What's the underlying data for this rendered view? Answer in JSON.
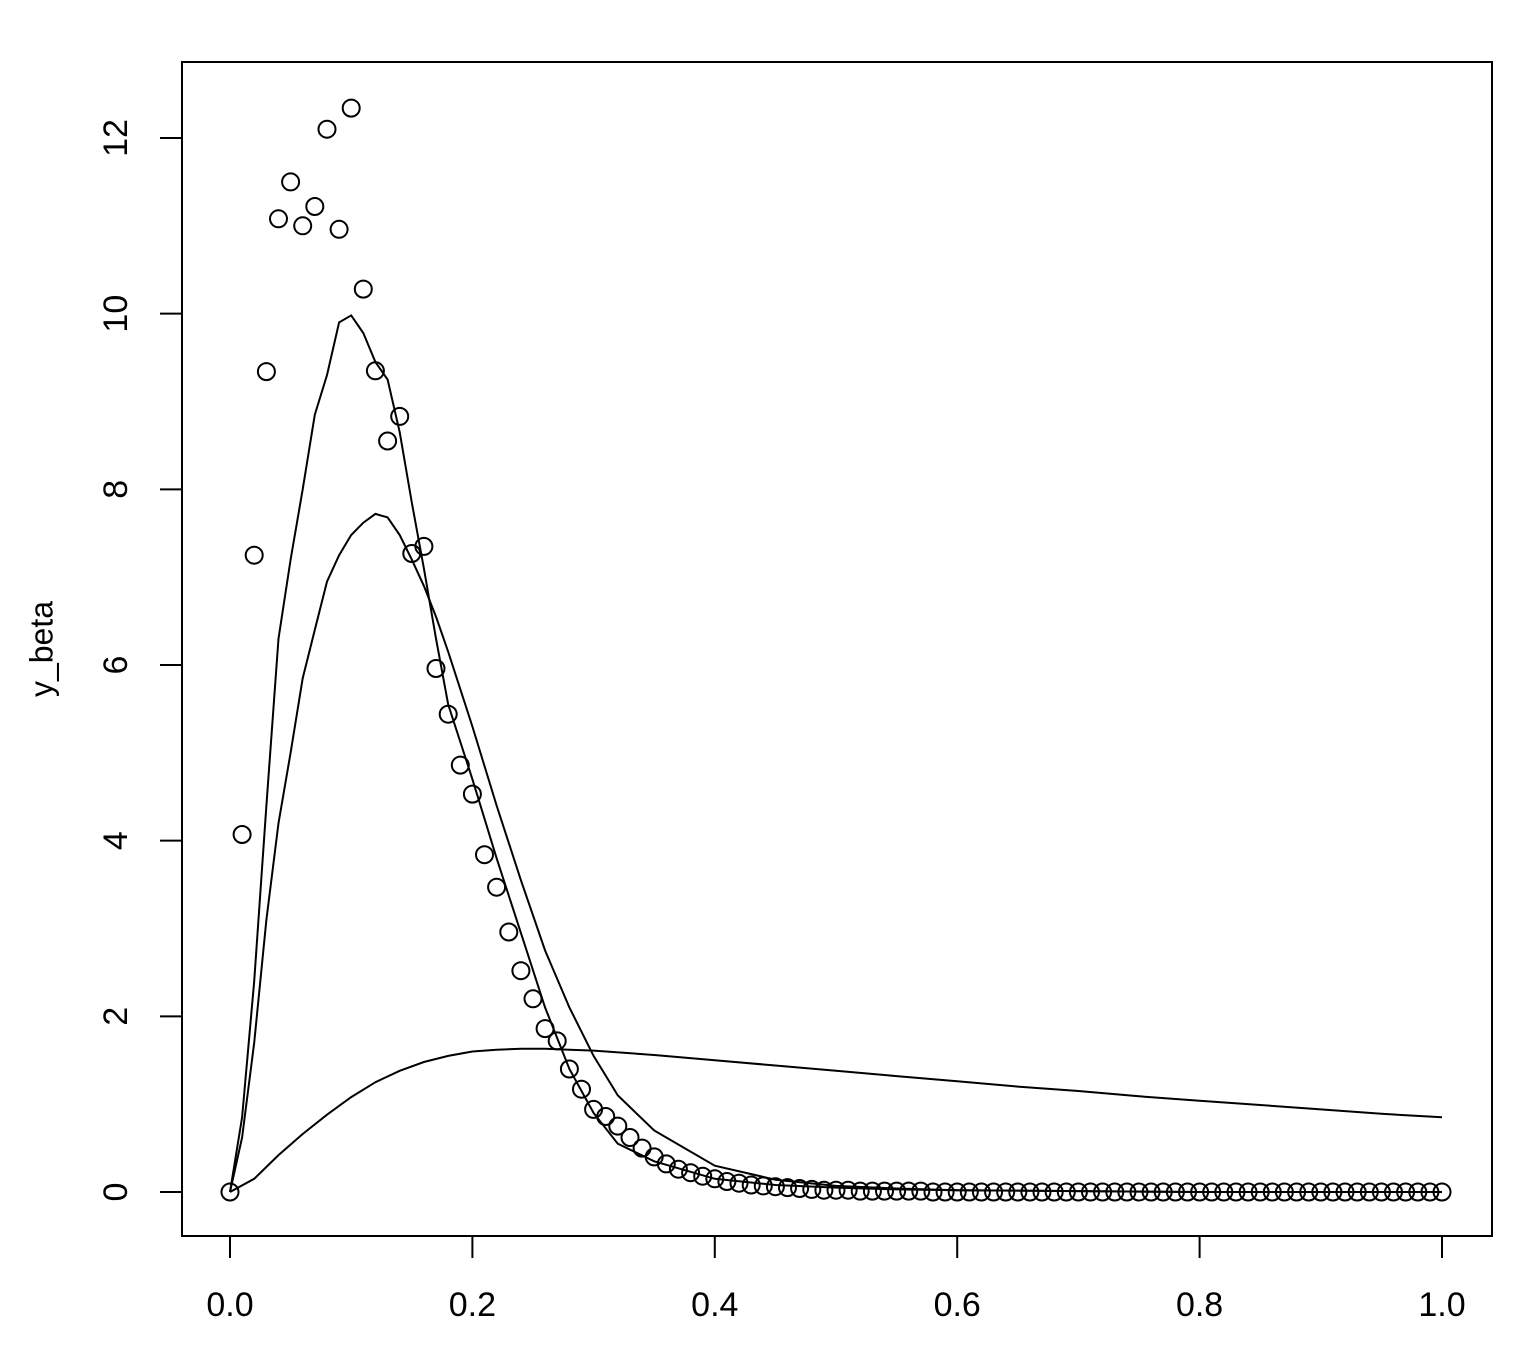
{
  "chart_data": {
    "type": "scatter",
    "title": "",
    "xlabel": "",
    "ylabel": "y_beta",
    "xlim": [
      -0.04,
      1.04
    ],
    "ylim": [
      -0.5,
      14
    ],
    "xticks": [
      "0.0",
      "0.2",
      "0.4",
      "0.6",
      "0.8",
      "1.0"
    ],
    "yticks": [
      "0",
      "2",
      "4",
      "6",
      "8",
      "10",
      "12"
    ],
    "grid": false,
    "legend": "none",
    "points": {
      "x": [
        0.0,
        0.01,
        0.02,
        0.03,
        0.04,
        0.05,
        0.06,
        0.07,
        0.08,
        0.09,
        0.1,
        0.11,
        0.12,
        0.13,
        0.14,
        0.15,
        0.16,
        0.17,
        0.18,
        0.19,
        0.2,
        0.21,
        0.22,
        0.23,
        0.24,
        0.25,
        0.26,
        0.27,
        0.28,
        0.29,
        0.3,
        0.31,
        0.32,
        0.33,
        0.34,
        0.35,
        0.36,
        0.37,
        0.38,
        0.39,
        0.4,
        0.41,
        0.42,
        0.43,
        0.44,
        0.45,
        0.46,
        0.47,
        0.48,
        0.49,
        0.5,
        0.51,
        0.52,
        0.53,
        0.54,
        0.55,
        0.56,
        0.57,
        0.58,
        0.59,
        0.6,
        0.61,
        0.62,
        0.63,
        0.64,
        0.65,
        0.66,
        0.67,
        0.68,
        0.69,
        0.7,
        0.71,
        0.72,
        0.73,
        0.74,
        0.75,
        0.76,
        0.77,
        0.78,
        0.79,
        0.8,
        0.81,
        0.82,
        0.83,
        0.84,
        0.85,
        0.86,
        0.87,
        0.88,
        0.89,
        0.9,
        0.91,
        0.92,
        0.93,
        0.94,
        0.95,
        0.96,
        0.97,
        0.98,
        0.99,
        1.0
      ],
      "y": [
        0.0,
        4.07,
        7.25,
        9.34,
        11.08,
        11.5,
        11.0,
        11.22,
        12.1,
        10.96,
        12.34,
        10.28,
        9.35,
        8.55,
        8.83,
        7.27,
        7.35,
        5.96,
        5.44,
        4.86,
        4.53,
        3.84,
        3.47,
        2.96,
        2.52,
        2.2,
        1.86,
        1.72,
        1.4,
        1.17,
        0.94,
        0.86,
        0.75,
        0.62,
        0.5,
        0.4,
        0.32,
        0.26,
        0.22,
        0.18,
        0.15,
        0.12,
        0.1,
        0.08,
        0.07,
        0.06,
        0.05,
        0.04,
        0.03,
        0.02,
        0.02,
        0.02,
        0.01,
        0.01,
        0.01,
        0.01,
        0.01,
        0.01,
        0.0,
        0.0,
        0.0,
        0.0,
        0.0,
        0.0,
        0.0,
        0.0,
        0.0,
        0.0,
        0.0,
        0.0,
        0.0,
        0.0,
        0.0,
        0.0,
        0.0,
        0.0,
        0.0,
        0.0,
        0.0,
        0.0,
        0.0,
        0.0,
        0.0,
        0.0,
        0.0,
        0.0,
        0.0,
        0.0,
        0.0,
        0.0,
        0.0,
        0.0,
        0.0,
        0.0,
        0.0,
        0.0,
        0.0,
        0.0,
        0.0,
        0.0,
        0.0
      ]
    },
    "series": [
      {
        "x": [
          0.0,
          0.01,
          0.02,
          0.03,
          0.04,
          0.05,
          0.06,
          0.07,
          0.08,
          0.09,
          0.1,
          0.11,
          0.12,
          0.13,
          0.14,
          0.15,
          0.16,
          0.17,
          0.18,
          0.2,
          0.22,
          0.24,
          0.26,
          0.28,
          0.3,
          0.32,
          0.35,
          0.4,
          0.45,
          0.5,
          0.55,
          0.6,
          0.7,
          0.8,
          0.9,
          1.0
        ],
        "y": [
          0.0,
          0.85,
          2.4,
          4.4,
          6.3,
          7.2,
          8.0,
          8.85,
          9.3,
          9.9,
          9.98,
          9.78,
          9.45,
          9.25,
          8.65,
          7.85,
          7.1,
          6.3,
          5.55,
          4.7,
          3.8,
          2.95,
          2.1,
          1.4,
          0.9,
          0.55,
          0.35,
          0.15,
          0.08,
          0.05,
          0.03,
          0.02,
          0.01,
          0.0,
          0.0,
          0.0
        ]
      },
      {
        "x": [
          0.0,
          0.01,
          0.02,
          0.03,
          0.04,
          0.05,
          0.06,
          0.07,
          0.08,
          0.09,
          0.1,
          0.11,
          0.12,
          0.13,
          0.14,
          0.15,
          0.16,
          0.17,
          0.18,
          0.2,
          0.22,
          0.24,
          0.26,
          0.28,
          0.3,
          0.32,
          0.35,
          0.4,
          0.45,
          0.5,
          0.55,
          0.6,
          0.7,
          0.8,
          0.9,
          1.0
        ],
        "y": [
          0.0,
          0.62,
          1.7,
          3.1,
          4.2,
          5.0,
          5.85,
          6.4,
          6.95,
          7.25,
          7.48,
          7.62,
          7.72,
          7.68,
          7.48,
          7.2,
          6.9,
          6.55,
          6.15,
          5.3,
          4.4,
          3.55,
          2.75,
          2.1,
          1.55,
          1.1,
          0.7,
          0.3,
          0.14,
          0.07,
          0.04,
          0.02,
          0.01,
          0.0,
          0.0,
          0.0
        ]
      },
      {
        "x": [
          0.0,
          0.02,
          0.04,
          0.06,
          0.08,
          0.1,
          0.12,
          0.14,
          0.16,
          0.18,
          0.2,
          0.22,
          0.24,
          0.26,
          0.28,
          0.3,
          0.35,
          0.4,
          0.45,
          0.5,
          0.55,
          0.6,
          0.65,
          0.7,
          0.75,
          0.8,
          0.85,
          0.9,
          0.95,
          1.0
        ],
        "y": [
          0.0,
          0.15,
          0.42,
          0.66,
          0.88,
          1.08,
          1.25,
          1.38,
          1.48,
          1.55,
          1.6,
          1.62,
          1.63,
          1.63,
          1.62,
          1.61,
          1.56,
          1.5,
          1.44,
          1.38,
          1.32,
          1.26,
          1.2,
          1.15,
          1.09,
          1.04,
          0.99,
          0.94,
          0.89,
          0.85
        ]
      }
    ]
  }
}
